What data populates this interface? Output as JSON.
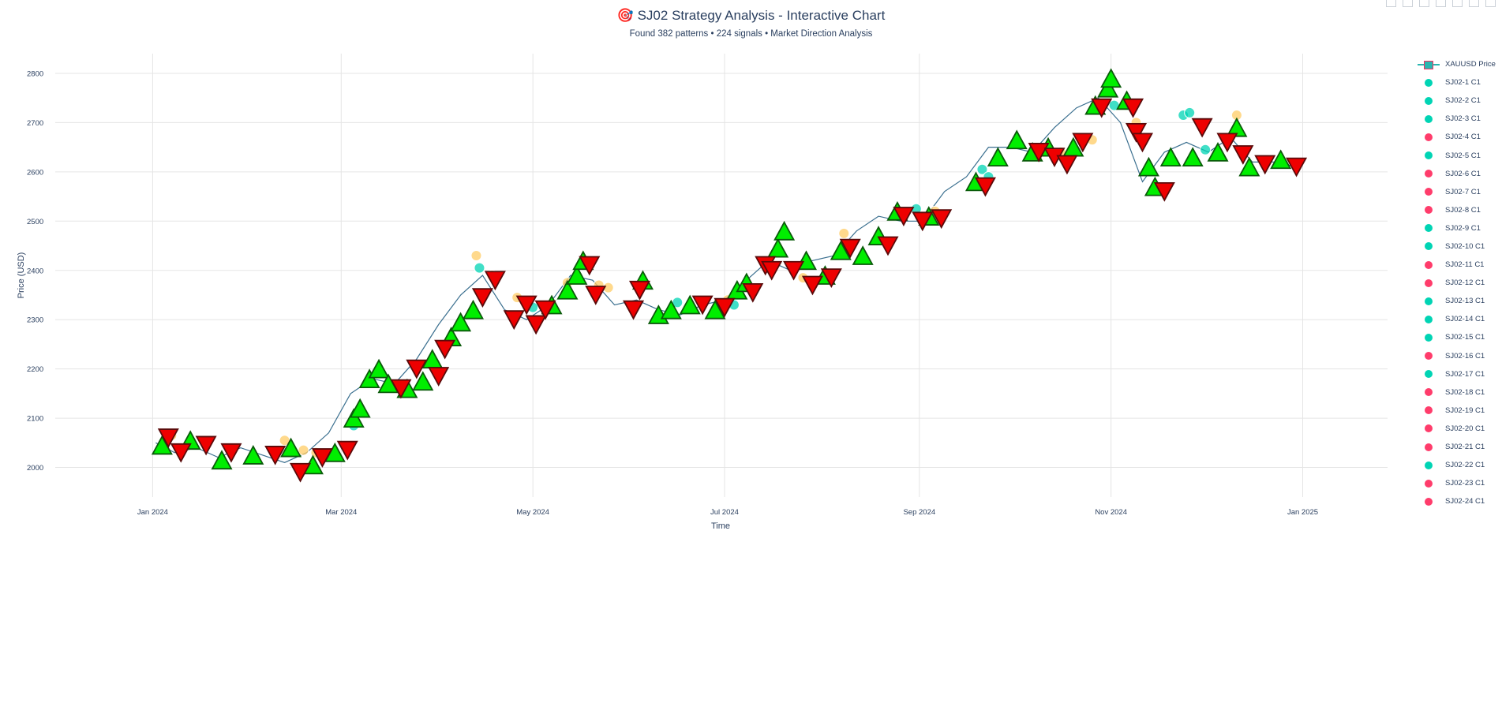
{
  "title": "🎯 SJ02 Strategy Analysis - Interactive Chart",
  "subtitle": "Found 382 patterns • 224 signals • Market Direction Analysis",
  "colors": {
    "up": "#00d4b4",
    "down": "#ff3c6b",
    "buy_marker": "#00ee00",
    "sell_marker": "#ee0000",
    "pending": "#ffcc66",
    "grid": "#e5e5e5",
    "axis_text": "#2a3f5f"
  },
  "legend": {
    "price_label": "XAUUSD Price",
    "items": [
      {
        "label": "SJ02-1 C1",
        "color": "#00d4b4"
      },
      {
        "label": "SJ02-2 C1",
        "color": "#00d4b4"
      },
      {
        "label": "SJ02-3 C1",
        "color": "#00d4b4"
      },
      {
        "label": "SJ02-4 C1",
        "color": "#ff3c6b"
      },
      {
        "label": "SJ02-5 C1",
        "color": "#00d4b4"
      },
      {
        "label": "SJ02-6 C1",
        "color": "#ff3c6b"
      },
      {
        "label": "SJ02-7 C1",
        "color": "#ff3c6b"
      },
      {
        "label": "SJ02-8 C1",
        "color": "#ff3c6b"
      },
      {
        "label": "SJ02-9 C1",
        "color": "#00d4b4"
      },
      {
        "label": "SJ02-10 C1",
        "color": "#00d4b4"
      },
      {
        "label": "SJ02-11 C1",
        "color": "#ff3c6b"
      },
      {
        "label": "SJ02-12 C1",
        "color": "#ff3c6b"
      },
      {
        "label": "SJ02-13 C1",
        "color": "#00d4b4"
      },
      {
        "label": "SJ02-14 C1",
        "color": "#00d4b4"
      },
      {
        "label": "SJ02-15 C1",
        "color": "#00d4b4"
      },
      {
        "label": "SJ02-16 C1",
        "color": "#ff3c6b"
      },
      {
        "label": "SJ02-17 C1",
        "color": "#00d4b4"
      },
      {
        "label": "SJ02-18 C1",
        "color": "#ff3c6b"
      },
      {
        "label": "SJ02-19 C1",
        "color": "#ff3c6b"
      },
      {
        "label": "SJ02-20 C1",
        "color": "#ff3c6b"
      },
      {
        "label": "SJ02-21 C1",
        "color": "#ff3c6b"
      },
      {
        "label": "SJ02-22 C1",
        "color": "#00d4b4"
      },
      {
        "label": "SJ02-23 C1",
        "color": "#ff3c6b"
      },
      {
        "label": "SJ02-24 C1",
        "color": "#ff3c6b"
      }
    ]
  },
  "chart_data": {
    "type": "line",
    "title": "🎯 SJ02 Strategy Analysis - Interactive Chart",
    "subtitle": "Found 382 patterns • 224 signals • Market Direction Analysis",
    "xlabel": "Time",
    "ylabel": "Price (USD)",
    "x_range": [
      "2023-12-01",
      "2025-01-28"
    ],
    "ylim": [
      1940,
      2840
    ],
    "x_ticks": [
      {
        "date": "2024-01-01",
        "label": "Jan 2024"
      },
      {
        "date": "2024-03-01",
        "label": "Mar 2024"
      },
      {
        "date": "2024-05-01",
        "label": "May 2024"
      },
      {
        "date": "2024-07-01",
        "label": "Jul 2024"
      },
      {
        "date": "2024-09-01",
        "label": "Sep 2024"
      },
      {
        "date": "2024-11-01",
        "label": "Nov 2024"
      },
      {
        "date": "2025-01-01",
        "label": "Jan 2025"
      }
    ],
    "y_ticks": [
      2000,
      2100,
      2200,
      2300,
      2400,
      2500,
      2600,
      2700,
      2800
    ],
    "grid": true,
    "legend_position": "right",
    "series": [
      {
        "name": "XAUUSD Price",
        "dates": [
          "2024-01-02",
          "2024-01-08",
          "2024-01-15",
          "2024-01-22",
          "2024-01-29",
          "2024-02-05",
          "2024-02-12",
          "2024-02-19",
          "2024-02-26",
          "2024-03-04",
          "2024-03-11",
          "2024-03-18",
          "2024-03-25",
          "2024-04-01",
          "2024-04-08",
          "2024-04-15",
          "2024-04-22",
          "2024-04-29",
          "2024-05-06",
          "2024-05-13",
          "2024-05-20",
          "2024-05-27",
          "2024-06-03",
          "2024-06-10",
          "2024-06-17",
          "2024-06-24",
          "2024-07-01",
          "2024-07-08",
          "2024-07-15",
          "2024-07-22",
          "2024-07-29",
          "2024-08-05",
          "2024-08-12",
          "2024-08-19",
          "2024-08-26",
          "2024-09-02",
          "2024-09-09",
          "2024-09-16",
          "2024-09-23",
          "2024-09-30",
          "2024-10-07",
          "2024-10-14",
          "2024-10-21",
          "2024-10-28",
          "2024-11-04",
          "2024-11-11",
          "2024-11-18",
          "2024-11-25",
          "2024-12-02",
          "2024-12-09",
          "2024-12-16",
          "2024-12-23",
          "2024-12-30"
        ],
        "values": [
          2050,
          2030,
          2040,
          2020,
          2040,
          2025,
          2010,
          2030,
          2070,
          2150,
          2180,
          2170,
          2220,
          2290,
          2350,
          2390,
          2320,
          2300,
          2330,
          2390,
          2380,
          2330,
          2340,
          2320,
          2310,
          2330,
          2340,
          2380,
          2420,
          2400,
          2420,
          2430,
          2480,
          2510,
          2500,
          2500,
          2560,
          2590,
          2650,
          2650,
          2640,
          2690,
          2730,
          2750,
          2700,
          2580,
          2640,
          2660,
          2640,
          2670,
          2620,
          2620,
          2610
        ]
      }
    ],
    "buy_signals": [
      {
        "date": "2024-01-04",
        "price": 2045
      },
      {
        "date": "2024-01-13",
        "price": 2055
      },
      {
        "date": "2024-01-23",
        "price": 2015
      },
      {
        "date": "2024-02-02",
        "price": 2025
      },
      {
        "date": "2024-02-14",
        "price": 2040
      },
      {
        "date": "2024-02-21",
        "price": 2005
      },
      {
        "date": "2024-02-28",
        "price": 2030
      },
      {
        "date": "2024-03-05",
        "price": 2100
      },
      {
        "date": "2024-03-07",
        "price": 2120
      },
      {
        "date": "2024-03-10",
        "price": 2180
      },
      {
        "date": "2024-03-13",
        "price": 2200
      },
      {
        "date": "2024-03-16",
        "price": 2170
      },
      {
        "date": "2024-03-22",
        "price": 2160
      },
      {
        "date": "2024-03-27",
        "price": 2175
      },
      {
        "date": "2024-03-30",
        "price": 2220
      },
      {
        "date": "2024-04-05",
        "price": 2265
      },
      {
        "date": "2024-04-08",
        "price": 2295
      },
      {
        "date": "2024-04-12",
        "price": 2320
      },
      {
        "date": "2024-05-07",
        "price": 2330
      },
      {
        "date": "2024-05-12",
        "price": 2360
      },
      {
        "date": "2024-05-15",
        "price": 2390
      },
      {
        "date": "2024-05-17",
        "price": 2420
      },
      {
        "date": "2024-06-05",
        "price": 2380
      },
      {
        "date": "2024-06-10",
        "price": 2310
      },
      {
        "date": "2024-06-14",
        "price": 2320
      },
      {
        "date": "2024-06-20",
        "price": 2330
      },
      {
        "date": "2024-06-28",
        "price": 2320
      },
      {
        "date": "2024-07-05",
        "price": 2360
      },
      {
        "date": "2024-07-08",
        "price": 2375
      },
      {
        "date": "2024-07-18",
        "price": 2445
      },
      {
        "date": "2024-07-20",
        "price": 2480
      },
      {
        "date": "2024-07-27",
        "price": 2420
      },
      {
        "date": "2024-08-02",
        "price": 2390
      },
      {
        "date": "2024-08-07",
        "price": 2440
      },
      {
        "date": "2024-08-14",
        "price": 2430
      },
      {
        "date": "2024-08-19",
        "price": 2470
      },
      {
        "date": "2024-08-25",
        "price": 2520
      },
      {
        "date": "2024-09-04",
        "price": 2510
      },
      {
        "date": "2024-09-19",
        "price": 2580
      },
      {
        "date": "2024-09-26",
        "price": 2630
      },
      {
        "date": "2024-10-02",
        "price": 2665
      },
      {
        "date": "2024-10-07",
        "price": 2640
      },
      {
        "date": "2024-10-12",
        "price": 2650
      },
      {
        "date": "2024-10-20",
        "price": 2650
      },
      {
        "date": "2024-10-27",
        "price": 2735
      },
      {
        "date": "2024-10-31",
        "price": 2770
      },
      {
        "date": "2024-11-01",
        "price": 2790
      },
      {
        "date": "2024-11-06",
        "price": 2745
      },
      {
        "date": "2024-11-13",
        "price": 2610
      },
      {
        "date": "2024-11-15",
        "price": 2570
      },
      {
        "date": "2024-11-20",
        "price": 2630
      },
      {
        "date": "2024-11-27",
        "price": 2630
      },
      {
        "date": "2024-12-05",
        "price": 2640
      },
      {
        "date": "2024-12-11",
        "price": 2690
      },
      {
        "date": "2024-12-15",
        "price": 2610
      },
      {
        "date": "2024-12-25",
        "price": 2625
      }
    ],
    "sell_signals": [
      {
        "date": "2024-01-06",
        "price": 2060
      },
      {
        "date": "2024-01-10",
        "price": 2030
      },
      {
        "date": "2024-01-18",
        "price": 2045
      },
      {
        "date": "2024-01-26",
        "price": 2030
      },
      {
        "date": "2024-02-09",
        "price": 2025
      },
      {
        "date": "2024-02-17",
        "price": 1990
      },
      {
        "date": "2024-02-24",
        "price": 2020
      },
      {
        "date": "2024-03-03",
        "price": 2035
      },
      {
        "date": "2024-03-20",
        "price": 2160
      },
      {
        "date": "2024-03-25",
        "price": 2200
      },
      {
        "date": "2024-04-01",
        "price": 2185
      },
      {
        "date": "2024-04-03",
        "price": 2240
      },
      {
        "date": "2024-04-15",
        "price": 2345
      },
      {
        "date": "2024-04-19",
        "price": 2380
      },
      {
        "date": "2024-04-25",
        "price": 2300
      },
      {
        "date": "2024-04-29",
        "price": 2330
      },
      {
        "date": "2024-05-02",
        "price": 2290
      },
      {
        "date": "2024-05-05",
        "price": 2320
      },
      {
        "date": "2024-05-19",
        "price": 2410
      },
      {
        "date": "2024-05-21",
        "price": 2350
      },
      {
        "date": "2024-06-02",
        "price": 2320
      },
      {
        "date": "2024-06-04",
        "price": 2360
      },
      {
        "date": "2024-06-24",
        "price": 2330
      },
      {
        "date": "2024-07-01",
        "price": 2325
      },
      {
        "date": "2024-07-10",
        "price": 2355
      },
      {
        "date": "2024-07-14",
        "price": 2410
      },
      {
        "date": "2024-07-16",
        "price": 2400
      },
      {
        "date": "2024-07-23",
        "price": 2400
      },
      {
        "date": "2024-07-29",
        "price": 2370
      },
      {
        "date": "2024-08-04",
        "price": 2385
      },
      {
        "date": "2024-08-10",
        "price": 2445
      },
      {
        "date": "2024-08-22",
        "price": 2450
      },
      {
        "date": "2024-08-27",
        "price": 2510
      },
      {
        "date": "2024-09-02",
        "price": 2500
      },
      {
        "date": "2024-09-08",
        "price": 2505
      },
      {
        "date": "2024-09-22",
        "price": 2570
      },
      {
        "date": "2024-10-09",
        "price": 2640
      },
      {
        "date": "2024-10-14",
        "price": 2630
      },
      {
        "date": "2024-10-18",
        "price": 2615
      },
      {
        "date": "2024-10-23",
        "price": 2660
      },
      {
        "date": "2024-10-29",
        "price": 2730
      },
      {
        "date": "2024-11-08",
        "price": 2730
      },
      {
        "date": "2024-11-09",
        "price": 2680
      },
      {
        "date": "2024-11-11",
        "price": 2660
      },
      {
        "date": "2024-11-18",
        "price": 2560
      },
      {
        "date": "2024-11-30",
        "price": 2690
      },
      {
        "date": "2024-12-08",
        "price": 2660
      },
      {
        "date": "2024-12-13",
        "price": 2635
      },
      {
        "date": "2024-12-20",
        "price": 2615
      },
      {
        "date": "2024-12-30",
        "price": 2610
      }
    ],
    "pattern_markers": [
      {
        "date": "2024-01-07",
        "price": 2065,
        "state": "pending"
      },
      {
        "date": "2024-02-12",
        "price": 2055,
        "state": "pending"
      },
      {
        "date": "2024-02-18",
        "price": 2035,
        "state": "pending"
      },
      {
        "date": "2024-02-22",
        "price": 2030,
        "state": "pending"
      },
      {
        "date": "2024-03-05",
        "price": 2085,
        "state": "up"
      },
      {
        "date": "2024-04-13",
        "price": 2430,
        "state": "pending"
      },
      {
        "date": "2024-04-14",
        "price": 2405,
        "state": "up"
      },
      {
        "date": "2024-04-18",
        "price": 2390,
        "state": "pending"
      },
      {
        "date": "2024-04-26",
        "price": 2345,
        "state": "pending"
      },
      {
        "date": "2024-05-01",
        "price": 2325,
        "state": "up"
      },
      {
        "date": "2024-05-12",
        "price": 2375,
        "state": "pending"
      },
      {
        "date": "2024-05-22",
        "price": 2370,
        "state": "pending"
      },
      {
        "date": "2024-05-25",
        "price": 2365,
        "state": "pending"
      },
      {
        "date": "2024-06-16",
        "price": 2335,
        "state": "up"
      },
      {
        "date": "2024-07-02",
        "price": 2340,
        "state": "pending"
      },
      {
        "date": "2024-07-04",
        "price": 2330,
        "state": "up"
      },
      {
        "date": "2024-07-26",
        "price": 2385,
        "state": "pending"
      },
      {
        "date": "2024-08-08",
        "price": 2475,
        "state": "pending"
      },
      {
        "date": "2024-08-31",
        "price": 2525,
        "state": "up"
      },
      {
        "date": "2024-09-06",
        "price": 2520,
        "state": "pending"
      },
      {
        "date": "2024-09-21",
        "price": 2605,
        "state": "up"
      },
      {
        "date": "2024-09-23",
        "price": 2590,
        "state": "up"
      },
      {
        "date": "2024-10-16",
        "price": 2640,
        "state": "pending"
      },
      {
        "date": "2024-10-26",
        "price": 2665,
        "state": "pending"
      },
      {
        "date": "2024-11-02",
        "price": 2735,
        "state": "up"
      },
      {
        "date": "2024-11-09",
        "price": 2700,
        "state": "pending"
      },
      {
        "date": "2024-11-24",
        "price": 2715,
        "state": "up"
      },
      {
        "date": "2024-11-26",
        "price": 2720,
        "state": "up"
      },
      {
        "date": "2024-12-01",
        "price": 2645,
        "state": "up"
      },
      {
        "date": "2024-12-11",
        "price": 2715,
        "state": "pending"
      }
    ]
  }
}
